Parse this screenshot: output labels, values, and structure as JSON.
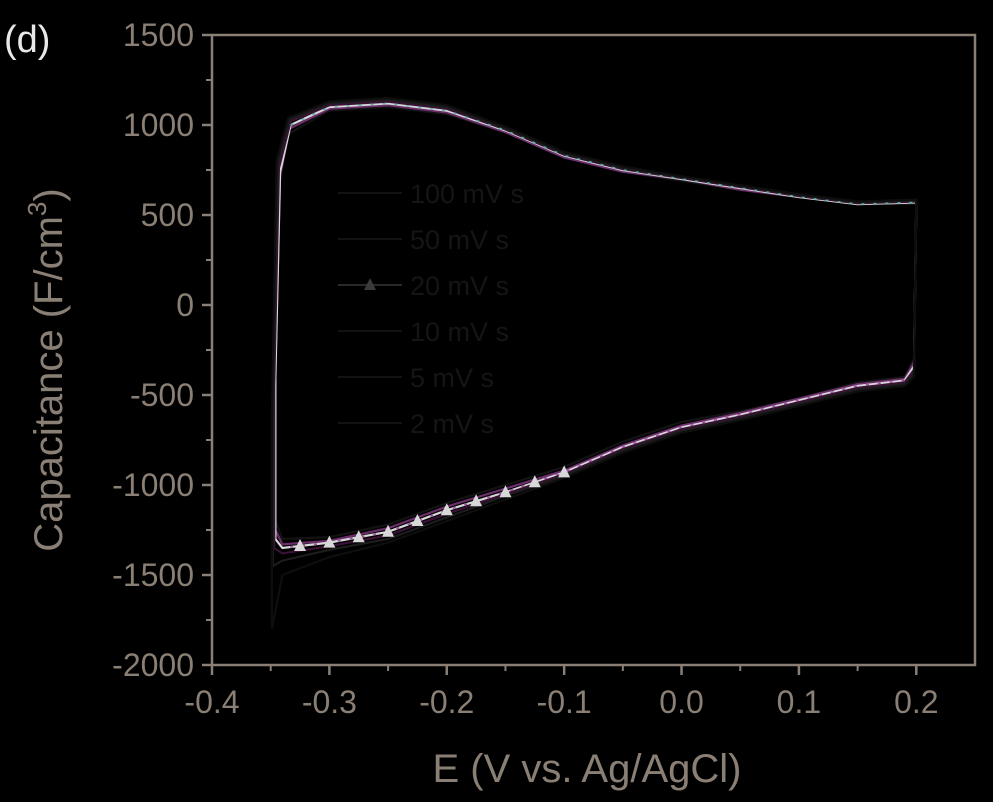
{
  "panel_label": "(d)",
  "colors": {
    "background": "#000000",
    "axis": "#8a7f74",
    "series_100": "#131313",
    "series_50": "#6d2f6c",
    "series_20": "#d8d8d8",
    "series_10": "#3a1236",
    "series_5": "#1c1c1c",
    "series_2": "#0e0e0e",
    "highlight_cyan": "#5fb3a8",
    "highlight_magenta": "#a04ea0"
  },
  "chart_data": {
    "type": "line",
    "xlabel": "E (V vs. Ag/AgCl)",
    "ylabel_text": "Capacitance (F/cm",
    "ylabel_sup": "3",
    "ylabel_close": ")",
    "xlim": [
      -0.4,
      0.25
    ],
    "ylim": [
      -2000,
      1500
    ],
    "x_ticks": [
      -0.4,
      -0.3,
      -0.2,
      -0.1,
      0.0,
      0.1,
      0.2
    ],
    "x_tick_labels": [
      "-0.4",
      "-0.3",
      "-0.2",
      "-0.1",
      "0.0",
      "0.1",
      "0.2"
    ],
    "y_ticks": [
      1500,
      1000,
      500,
      0,
      -500,
      -1000,
      -1500,
      -2000
    ],
    "y_tick_labels": [
      "1500",
      "1000",
      "500",
      "0",
      "-500",
      "-1000",
      "-1500",
      "-2000"
    ],
    "grid": false,
    "legend_position": "center-left",
    "series": [
      {
        "name": "100 mV s-1",
        "legend_label": "100 mV s",
        "marker": "square",
        "upper": [
          [
            -0.346,
            -300
          ],
          [
            -0.342,
            700
          ],
          [
            -0.335,
            950
          ],
          [
            -0.3,
            1080
          ],
          [
            -0.25,
            1100
          ],
          [
            -0.2,
            1060
          ],
          [
            -0.15,
            960
          ],
          [
            -0.1,
            820
          ],
          [
            -0.05,
            740
          ],
          [
            0.0,
            690
          ],
          [
            0.05,
            640
          ],
          [
            0.1,
            600
          ],
          [
            0.15,
            560
          ],
          [
            0.2,
            560
          ]
        ],
        "lower": [
          [
            0.2,
            560
          ],
          [
            0.198,
            -300
          ],
          [
            0.19,
            -400
          ],
          [
            0.15,
            -430
          ],
          [
            0.1,
            -520
          ],
          [
            0.05,
            -590
          ],
          [
            0.0,
            -650
          ],
          [
            -0.05,
            -760
          ],
          [
            -0.1,
            -900
          ],
          [
            -0.15,
            -1000
          ],
          [
            -0.2,
            -1100
          ],
          [
            -0.25,
            -1220
          ],
          [
            -0.3,
            -1290
          ],
          [
            -0.34,
            -1300
          ],
          [
            -0.346,
            -1200
          ],
          [
            -0.346,
            -300
          ]
        ]
      },
      {
        "name": "50 mV s-1",
        "legend_label": "50 mV s",
        "marker": "circle",
        "upper": [
          [
            -0.346,
            -350
          ],
          [
            -0.342,
            720
          ],
          [
            -0.334,
            980
          ],
          [
            -0.3,
            1090
          ],
          [
            -0.25,
            1110
          ],
          [
            -0.2,
            1070
          ],
          [
            -0.15,
            960
          ],
          [
            -0.1,
            820
          ],
          [
            -0.05,
            740
          ],
          [
            0.0,
            700
          ],
          [
            0.05,
            640
          ],
          [
            0.1,
            600
          ],
          [
            0.15,
            560
          ],
          [
            0.2,
            570
          ]
        ],
        "lower": [
          [
            0.2,
            570
          ],
          [
            0.198,
            -320
          ],
          [
            0.19,
            -410
          ],
          [
            0.15,
            -440
          ],
          [
            0.1,
            -520
          ],
          [
            0.05,
            -600
          ],
          [
            0.0,
            -670
          ],
          [
            -0.05,
            -780
          ],
          [
            -0.1,
            -920
          ],
          [
            -0.15,
            -1020
          ],
          [
            -0.2,
            -1120
          ],
          [
            -0.25,
            -1240
          ],
          [
            -0.3,
            -1310
          ],
          [
            -0.34,
            -1330
          ],
          [
            -0.346,
            -1250
          ],
          [
            -0.346,
            -350
          ]
        ]
      },
      {
        "name": "20 mV s-1",
        "legend_label": "20 mV s",
        "marker": "triangle-up",
        "upper": [
          [
            -0.346,
            -400
          ],
          [
            -0.342,
            740
          ],
          [
            -0.333,
            1000
          ],
          [
            -0.3,
            1100
          ],
          [
            -0.25,
            1120
          ],
          [
            -0.2,
            1080
          ],
          [
            -0.15,
            970
          ],
          [
            -0.1,
            830
          ],
          [
            -0.05,
            750
          ],
          [
            0.0,
            700
          ],
          [
            0.05,
            650
          ],
          [
            0.1,
            600
          ],
          [
            0.15,
            560
          ],
          [
            0.2,
            570
          ]
        ],
        "lower": [
          [
            0.2,
            570
          ],
          [
            0.198,
            -340
          ],
          [
            0.19,
            -420
          ],
          [
            0.15,
            -450
          ],
          [
            0.1,
            -530
          ],
          [
            0.05,
            -610
          ],
          [
            0.0,
            -680
          ],
          [
            -0.05,
            -790
          ],
          [
            -0.1,
            -930
          ],
          [
            -0.15,
            -1040
          ],
          [
            -0.2,
            -1140
          ],
          [
            -0.25,
            -1260
          ],
          [
            -0.3,
            -1320
          ],
          [
            -0.34,
            -1350
          ],
          [
            -0.346,
            -1300
          ],
          [
            -0.346,
            -400
          ]
        ]
      },
      {
        "name": "10 mV s-1",
        "legend_label": "10 mV s",
        "marker": "triangle-down",
        "upper": [
          [
            -0.347,
            -450
          ],
          [
            -0.343,
            760
          ],
          [
            -0.333,
            1020
          ],
          [
            -0.3,
            1110
          ],
          [
            -0.25,
            1130
          ],
          [
            -0.2,
            1090
          ],
          [
            -0.15,
            975
          ],
          [
            -0.1,
            835
          ],
          [
            -0.05,
            755
          ],
          [
            0.0,
            705
          ],
          [
            0.05,
            655
          ],
          [
            0.1,
            605
          ],
          [
            0.15,
            565
          ],
          [
            0.2,
            575
          ]
        ],
        "lower": [
          [
            0.2,
            575
          ],
          [
            0.198,
            -360
          ],
          [
            0.19,
            -430
          ],
          [
            0.15,
            -460
          ],
          [
            0.1,
            -540
          ],
          [
            0.05,
            -620
          ],
          [
            0.0,
            -690
          ],
          [
            -0.05,
            -800
          ],
          [
            -0.1,
            -940
          ],
          [
            -0.15,
            -1050
          ],
          [
            -0.2,
            -1160
          ],
          [
            -0.25,
            -1280
          ],
          [
            -0.3,
            -1340
          ],
          [
            -0.34,
            -1380
          ],
          [
            -0.347,
            -1350
          ],
          [
            -0.347,
            -450
          ]
        ]
      },
      {
        "name": "5 mV s-1",
        "legend_label": "5 mV s",
        "marker": "diamond",
        "upper": [
          [
            -0.348,
            -500
          ],
          [
            -0.344,
            780
          ],
          [
            -0.334,
            1030
          ],
          [
            -0.3,
            1120
          ],
          [
            -0.25,
            1140
          ],
          [
            -0.2,
            1100
          ],
          [
            -0.15,
            980
          ],
          [
            -0.1,
            840
          ],
          [
            -0.05,
            760
          ],
          [
            0.0,
            710
          ],
          [
            0.05,
            660
          ],
          [
            0.1,
            610
          ],
          [
            0.15,
            570
          ],
          [
            0.2,
            580
          ]
        ],
        "lower": [
          [
            0.2,
            580
          ],
          [
            0.198,
            -380
          ],
          [
            0.19,
            -440
          ],
          [
            0.15,
            -470
          ],
          [
            0.1,
            -550
          ],
          [
            0.05,
            -630
          ],
          [
            0.0,
            -700
          ],
          [
            -0.05,
            -810
          ],
          [
            -0.1,
            -950
          ],
          [
            -0.15,
            -1060
          ],
          [
            -0.2,
            -1180
          ],
          [
            -0.25,
            -1300
          ],
          [
            -0.3,
            -1360
          ],
          [
            -0.34,
            -1420
          ],
          [
            -0.348,
            -1450
          ],
          [
            -0.348,
            -500
          ]
        ]
      },
      {
        "name": "2 mV s-1",
        "legend_label": "2 mV s",
        "marker": "triangle-left",
        "upper": [
          [
            -0.349,
            -600
          ],
          [
            -0.345,
            800
          ],
          [
            -0.335,
            1040
          ],
          [
            -0.3,
            1130
          ],
          [
            -0.25,
            1150
          ],
          [
            -0.2,
            1110
          ],
          [
            -0.15,
            990
          ],
          [
            -0.1,
            850
          ],
          [
            -0.05,
            770
          ],
          [
            0.0,
            715
          ],
          [
            0.05,
            665
          ],
          [
            0.1,
            615
          ],
          [
            0.15,
            575
          ],
          [
            0.2,
            585
          ]
        ],
        "lower": [
          [
            0.2,
            585
          ],
          [
            0.198,
            -400
          ],
          [
            0.19,
            -450
          ],
          [
            0.15,
            -480
          ],
          [
            0.1,
            -560
          ],
          [
            0.05,
            -640
          ],
          [
            0.0,
            -710
          ],
          [
            -0.05,
            -820
          ],
          [
            -0.1,
            -960
          ],
          [
            -0.15,
            -1080
          ],
          [
            -0.2,
            -1200
          ],
          [
            -0.25,
            -1320
          ],
          [
            -0.3,
            -1400
          ],
          [
            -0.34,
            -1500
          ],
          [
            -0.349,
            -1800
          ],
          [
            -0.349,
            -600
          ]
        ]
      }
    ]
  }
}
